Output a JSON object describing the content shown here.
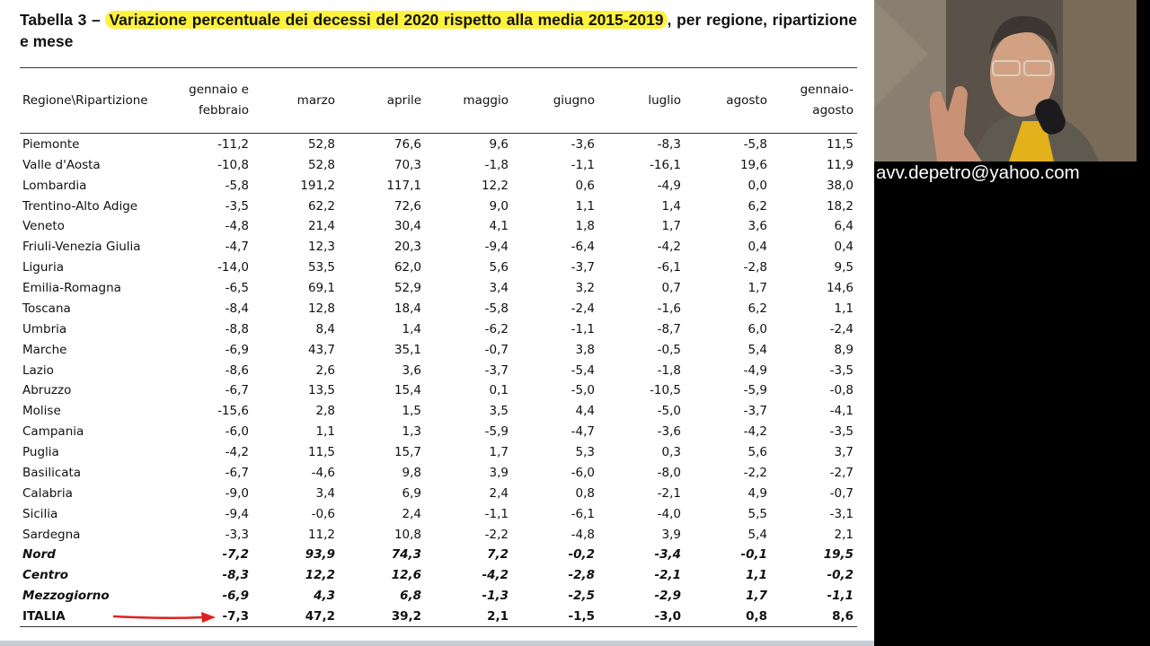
{
  "document": {
    "title_label": "Tabella  3 –",
    "title_highlight": "Variazione percentuale dei decessi del 2020 rispetto alla media 2015-2019",
    "title_rest": ", per regione, ripartizione e mese",
    "email": "avv.depetro@yahoo.com",
    "table": {
      "headers": [
        "Regione\\Ripartizione",
        "gennaio e febbraio",
        "marzo",
        "aprile",
        "maggio",
        "giugno",
        "luglio",
        "agosto",
        "gennaio-agosto"
      ],
      "rows": [
        [
          "Piemonte",
          "-11,2",
          "52,8",
          "76,6",
          "9,6",
          "-3,6",
          "-8,3",
          "-5,8",
          "11,5"
        ],
        [
          "Valle d'Aosta",
          "-10,8",
          "52,8",
          "70,3",
          "-1,8",
          "-1,1",
          "-16,1",
          "19,6",
          "11,9"
        ],
        [
          "Lombardia",
          "-5,8",
          "191,2",
          "117,1",
          "12,2",
          "0,6",
          "-4,9",
          "0,0",
          "38,0"
        ],
        [
          "Trentino-Alto Adige",
          "-3,5",
          "62,2",
          "72,6",
          "9,0",
          "1,1",
          "1,4",
          "6,2",
          "18,2"
        ],
        [
          "Veneto",
          "-4,8",
          "21,4",
          "30,4",
          "4,1",
          "1,8",
          "1,7",
          "3,6",
          "6,4"
        ],
        [
          "Friuli-Venezia Giulia",
          "-4,7",
          "12,3",
          "20,3",
          "-9,4",
          "-6,4",
          "-4,2",
          "0,4",
          "0,4"
        ],
        [
          "Liguria",
          "-14,0",
          "53,5",
          "62,0",
          "5,6",
          "-3,7",
          "-6,1",
          "-2,8",
          "9,5"
        ],
        [
          "Emilia-Romagna",
          "-6,5",
          "69,1",
          "52,9",
          "3,4",
          "3,2",
          "0,7",
          "1,7",
          "14,6"
        ],
        [
          "Toscana",
          "-8,4",
          "12,8",
          "18,4",
          "-5,8",
          "-2,4",
          "-1,6",
          "6,2",
          "1,1"
        ],
        [
          "Umbria",
          "-8,8",
          "8,4",
          "1,4",
          "-6,2",
          "-1,1",
          "-8,7",
          "6,0",
          "-2,4"
        ],
        [
          "Marche",
          "-6,9",
          "43,7",
          "35,1",
          "-0,7",
          "3,8",
          "-0,5",
          "5,4",
          "8,9"
        ],
        [
          "Lazio",
          "-8,6",
          "2,6",
          "3,6",
          "-3,7",
          "-5,4",
          "-1,8",
          "-4,9",
          "-3,5"
        ],
        [
          "Abruzzo",
          "-6,7",
          "13,5",
          "15,4",
          "0,1",
          "-5,0",
          "-10,5",
          "-5,9",
          "-0,8"
        ],
        [
          "Molise",
          "-15,6",
          "2,8",
          "1,5",
          "3,5",
          "4,4",
          "-5,0",
          "-3,7",
          "-4,1"
        ],
        [
          "Campania",
          "-6,0",
          "1,1",
          "1,3",
          "-5,9",
          "-4,7",
          "-3,6",
          "-4,2",
          "-3,5"
        ],
        [
          "Puglia",
          "-4,2",
          "11,5",
          "15,7",
          "1,7",
          "5,3",
          "0,3",
          "5,6",
          "3,7"
        ],
        [
          "Basilicata",
          "-6,7",
          "-4,6",
          "9,8",
          "3,9",
          "-6,0",
          "-8,0",
          "-2,2",
          "-2,7"
        ],
        [
          "Calabria",
          "-9,0",
          "3,4",
          "6,9",
          "2,4",
          "0,8",
          "-2,1",
          "4,9",
          "-0,7"
        ],
        [
          "Sicilia",
          "-9,4",
          "-0,6",
          "2,4",
          "-1,1",
          "-6,1",
          "-4,0",
          "5,5",
          "-3,1"
        ],
        [
          "Sardegna",
          "-3,3",
          "11,2",
          "10,8",
          "-2,2",
          "-4,8",
          "3,9",
          "5,4",
          "2,1"
        ],
        [
          "Nord",
          "-7,2",
          "93,9",
          "74,3",
          "7,2",
          "-0,2",
          "-3,4",
          "-0,1",
          "19,5"
        ],
        [
          "Centro",
          "-8,3",
          "12,2",
          "12,6",
          "-4,2",
          "-2,8",
          "-2,1",
          "1,1",
          "-0,2"
        ],
        [
          "Mezzogiorno",
          "-6,9",
          "4,3",
          "6,8",
          "-1,3",
          "-2,5",
          "-2,9",
          "1,7",
          "-1,1"
        ],
        [
          "ITALIA",
          "-7,3",
          "47,2",
          "39,2",
          "2,1",
          "-1,5",
          "-3,0",
          "0,8",
          "8,6"
        ]
      ]
    }
  }
}
